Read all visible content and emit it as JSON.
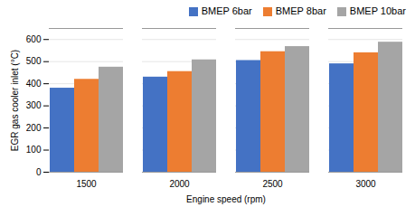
{
  "chart_data": {
    "type": "bar",
    "xlabel": "Engine speed (rpm)",
    "ylabel": "EGR gas cooler inlet (°C)",
    "categories": [
      "1500",
      "2000",
      "2500",
      "3000"
    ],
    "series": [
      {
        "name": "BMEP 6bar",
        "values": [
          380,
          430,
          505,
          490
        ],
        "color": "#4472C4"
      },
      {
        "name": "BMEP 8bar",
        "values": [
          420,
          455,
          545,
          540
        ],
        "color": "#ED7D31"
      },
      {
        "name": "BMEP 10bar",
        "values": [
          475,
          508,
          568,
          588
        ],
        "color": "#A5A5A5"
      }
    ],
    "ylim": [
      0,
      650
    ],
    "yticks": [
      0,
      100,
      200,
      300,
      400,
      500,
      600
    ],
    "grid": true,
    "legend": "upper right"
  }
}
